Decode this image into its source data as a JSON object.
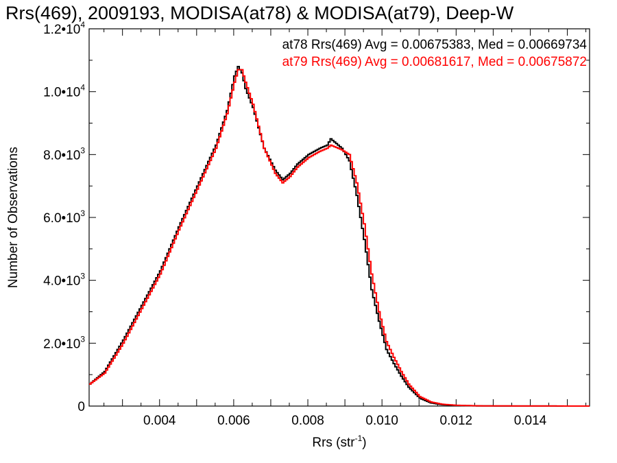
{
  "chart_data": {
    "type": "line",
    "title": "Rrs(469), 2009193, MODISA(at78) & MODISA(at79), Deep-W",
    "xlabel": "Rrs (str",
    "xlabel_sup": "-1",
    "xlabel_end": ")",
    "ylabel": "Number of Observations",
    "xlim": [
      0.0021,
      0.0156
    ],
    "ylim": [
      0,
      12000
    ],
    "xticks": [
      {
        "value": 0.004,
        "label": "0.004"
      },
      {
        "value": 0.006,
        "label": "0.006"
      },
      {
        "value": 0.008,
        "label": "0.008"
      },
      {
        "value": 0.01,
        "label": "0.010"
      },
      {
        "value": 0.012,
        "label": "0.012"
      },
      {
        "value": 0.014,
        "label": "0.014"
      }
    ],
    "yticks": [
      {
        "value": 0,
        "mant": "0",
        "exp": ""
      },
      {
        "value": 2000,
        "mant": "2.0•10",
        "exp": "3"
      },
      {
        "value": 4000,
        "mant": "4.0•10",
        "exp": "3"
      },
      {
        "value": 6000,
        "mant": "6.0•10",
        "exp": "3"
      },
      {
        "value": 8000,
        "mant": "8.0•10",
        "exp": "3"
      },
      {
        "value": 10000,
        "mant": "1.0•10",
        "exp": "4"
      },
      {
        "value": 12000,
        "mant": "1.2•10",
        "exp": "4"
      }
    ],
    "series": [
      {
        "name": "at78",
        "color": "#000000",
        "label": "at78 Rrs(469) Avg = 0.00675383, Med = 0.00669734",
        "x": [
          0.0021,
          0.0025,
          0.003,
          0.0035,
          0.004,
          0.0045,
          0.005,
          0.0055,
          0.0058,
          0.006,
          0.0061,
          0.0062,
          0.0063,
          0.0065,
          0.0068,
          0.0071,
          0.0073,
          0.0075,
          0.0077,
          0.008,
          0.0083,
          0.0085,
          0.0086,
          0.0087,
          0.0089,
          0.0091,
          0.0093,
          0.0095,
          0.0097,
          0.0099,
          0.0101,
          0.0103,
          0.0105,
          0.0107,
          0.011,
          0.0113,
          0.0116,
          0.012,
          0.0125,
          0.013,
          0.0156
        ],
        "y": [
          700,
          1100,
          2100,
          3200,
          4300,
          5700,
          7000,
          8300,
          9400,
          10500,
          10800,
          10600,
          10100,
          9500,
          8200,
          7500,
          7200,
          7400,
          7700,
          8000,
          8200,
          8300,
          8500,
          8400,
          8200,
          7800,
          6700,
          5300,
          3700,
          2700,
          1800,
          1350,
          950,
          600,
          250,
          100,
          45,
          20,
          8,
          3,
          0
        ]
      },
      {
        "name": "at79",
        "color": "#ff0000",
        "label": "at79 Rrs(469) Avg = 0.00681617, Med = 0.00675872",
        "x": [
          0.0021,
          0.0025,
          0.003,
          0.0035,
          0.004,
          0.0045,
          0.005,
          0.0055,
          0.0058,
          0.006,
          0.0061,
          0.0062,
          0.0063,
          0.0065,
          0.0068,
          0.0071,
          0.0073,
          0.0075,
          0.0077,
          0.008,
          0.0083,
          0.0085,
          0.0086,
          0.0087,
          0.0089,
          0.0091,
          0.0093,
          0.0095,
          0.0097,
          0.0099,
          0.0101,
          0.0103,
          0.0105,
          0.0107,
          0.011,
          0.0113,
          0.0116,
          0.012,
          0.0125,
          0.013,
          0.0156
        ],
        "y": [
          700,
          1050,
          2000,
          3100,
          4200,
          5600,
          6900,
          8200,
          9300,
          10300,
          10700,
          10700,
          10300,
          9600,
          8200,
          7400,
          7100,
          7300,
          7600,
          7900,
          8100,
          8200,
          8300,
          8250,
          8150,
          8000,
          7100,
          5800,
          4200,
          3000,
          2050,
          1550,
          1100,
          700,
          300,
          130,
          60,
          25,
          10,
          4,
          0
        ]
      }
    ]
  }
}
